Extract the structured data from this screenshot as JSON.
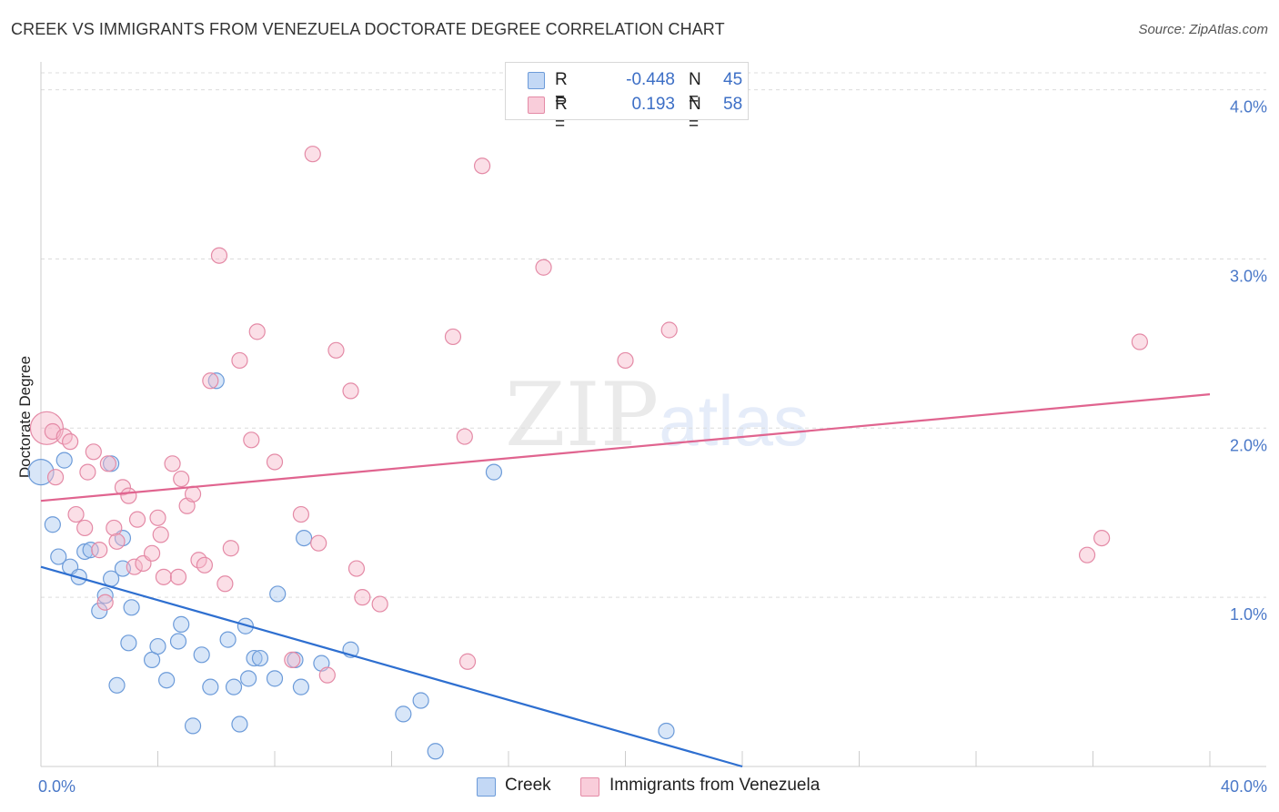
{
  "header": {
    "title": "CREEK VS IMMIGRANTS FROM VENEZUELA DOCTORATE DEGREE CORRELATION CHART",
    "source": "Source: ZipAtlas.com"
  },
  "watermark": {
    "zip": "ZIP",
    "atlas": "atlas"
  },
  "legend": {
    "rows": [
      {
        "r_label": "R =",
        "r_value": "-0.448",
        "n_label": "N =",
        "n_value": "45",
        "color": "#a9c8f0"
      },
      {
        "r_label": "R =",
        "r_value": "0.193",
        "n_label": "N =",
        "n_value": "58",
        "color": "#f6b7c9"
      }
    ]
  },
  "bottom_legend": {
    "creek": "Creek",
    "venezuela": "Immigrants from Venezuela"
  },
  "chart_data": {
    "type": "scatter",
    "title": "CREEK VS IMMIGRANTS FROM VENEZUELA DOCTORATE DEGREE CORRELATION CHART",
    "xlabel": "",
    "ylabel": "Doctorate Degree",
    "xlim": [
      0,
      40
    ],
    "ylim": [
      0,
      4.1
    ],
    "x_tick_labels": {
      "min": "0.0%",
      "max": "40.0%"
    },
    "y_ticks": [
      {
        "value": 1,
        "label": "1.0%"
      },
      {
        "value": 2,
        "label": "2.0%"
      },
      {
        "value": 3,
        "label": "3.0%"
      },
      {
        "value": 4,
        "label": "4.0%"
      }
    ],
    "series": [
      {
        "name": "Creek",
        "color": "#a9c8f0",
        "stroke": "#6c9bd9",
        "trend_color": "#2e6fd0",
        "trend": {
          "x0": 0,
          "y0": 1.18,
          "x1": 24,
          "y1": 0
        },
        "points": [
          [
            0.0,
            1.74
          ],
          [
            0.8,
            1.81
          ],
          [
            0.4,
            1.43
          ],
          [
            0.6,
            1.24
          ],
          [
            1.0,
            1.18
          ],
          [
            1.3,
            1.12
          ],
          [
            1.5,
            1.27
          ],
          [
            1.7,
            1.28
          ],
          [
            2.4,
            1.79
          ],
          [
            2.8,
            1.17
          ],
          [
            2.8,
            1.35
          ],
          [
            2.4,
            1.11
          ],
          [
            2.2,
            1.01
          ],
          [
            2.0,
            0.92
          ],
          [
            3.1,
            0.94
          ],
          [
            3.0,
            0.73
          ],
          [
            3.8,
            0.63
          ],
          [
            4.0,
            0.71
          ],
          [
            4.3,
            0.51
          ],
          [
            4.7,
            0.74
          ],
          [
            4.8,
            0.84
          ],
          [
            5.5,
            0.66
          ],
          [
            5.8,
            0.47
          ],
          [
            6.0,
            2.28
          ],
          [
            6.4,
            0.75
          ],
          [
            6.6,
            0.47
          ],
          [
            7.0,
            0.83
          ],
          [
            7.1,
            0.52
          ],
          [
            7.3,
            0.64
          ],
          [
            7.5,
            0.64
          ],
          [
            8.0,
            0.52
          ],
          [
            8.1,
            1.02
          ],
          [
            8.7,
            0.63
          ],
          [
            8.9,
            0.47
          ],
          [
            9.0,
            1.35
          ],
          [
            9.6,
            0.61
          ],
          [
            10.6,
            0.69
          ],
          [
            12.4,
            0.31
          ],
          [
            13.0,
            0.39
          ],
          [
            13.5,
            0.09
          ],
          [
            15.5,
            1.74
          ],
          [
            21.4,
            0.21
          ],
          [
            2.6,
            0.48
          ],
          [
            5.2,
            0.24
          ],
          [
            6.8,
            0.25
          ]
        ]
      },
      {
        "name": "Immigrants from Venezuela",
        "color": "#f6b7c9",
        "stroke": "#e48aa6",
        "trend_color": "#e0648f",
        "trend": {
          "x0": 0,
          "y0": 1.57,
          "x1": 40,
          "y1": 2.2
        },
        "points": [
          [
            0.2,
            2.0
          ],
          [
            0.4,
            1.98
          ],
          [
            0.8,
            1.95
          ],
          [
            1.0,
            1.92
          ],
          [
            0.5,
            1.71
          ],
          [
            1.2,
            1.49
          ],
          [
            1.5,
            1.41
          ],
          [
            1.6,
            1.74
          ],
          [
            1.8,
            1.86
          ],
          [
            2.0,
            1.28
          ],
          [
            2.2,
            0.97
          ],
          [
            2.3,
            1.79
          ],
          [
            2.5,
            1.41
          ],
          [
            2.6,
            1.33
          ],
          [
            2.8,
            1.65
          ],
          [
            3.0,
            1.6
          ],
          [
            3.2,
            1.18
          ],
          [
            3.3,
            1.46
          ],
          [
            3.5,
            1.2
          ],
          [
            3.8,
            1.26
          ],
          [
            4.0,
            1.47
          ],
          [
            4.1,
            1.37
          ],
          [
            4.2,
            1.12
          ],
          [
            4.5,
            1.79
          ],
          [
            4.7,
            1.12
          ],
          [
            4.8,
            1.7
          ],
          [
            5.0,
            1.54
          ],
          [
            5.2,
            1.61
          ],
          [
            5.4,
            1.22
          ],
          [
            5.6,
            1.19
          ],
          [
            6.1,
            3.02
          ],
          [
            6.3,
            1.08
          ],
          [
            6.5,
            1.29
          ],
          [
            6.8,
            2.4
          ],
          [
            7.2,
            1.93
          ],
          [
            7.4,
            2.57
          ],
          [
            8.0,
            1.8
          ],
          [
            8.6,
            0.63
          ],
          [
            8.9,
            1.49
          ],
          [
            9.3,
            3.62
          ],
          [
            9.5,
            1.32
          ],
          [
            9.8,
            0.54
          ],
          [
            10.1,
            2.46
          ],
          [
            10.6,
            2.22
          ],
          [
            10.8,
            1.17
          ],
          [
            11.0,
            1.0
          ],
          [
            11.6,
            0.96
          ],
          [
            14.1,
            2.54
          ],
          [
            14.6,
            0.62
          ],
          [
            14.5,
            1.95
          ],
          [
            17.2,
            2.95
          ],
          [
            20.0,
            2.4
          ],
          [
            21.5,
            2.58
          ],
          [
            35.8,
            1.25
          ],
          [
            36.3,
            1.35
          ],
          [
            37.6,
            2.51
          ],
          [
            15.1,
            3.55
          ],
          [
            5.8,
            2.28
          ]
        ]
      }
    ]
  }
}
